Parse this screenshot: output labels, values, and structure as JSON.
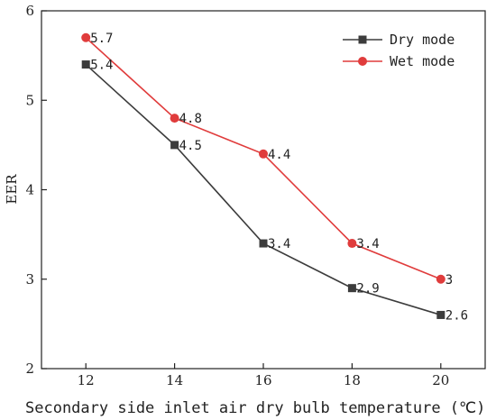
{
  "chart_data": {
    "type": "line",
    "title": "",
    "xlabel": "Secondary side inlet air dry bulb temperature (℃)",
    "ylabel": "EER",
    "x": [
      12,
      14,
      16,
      18,
      20
    ],
    "xlim": [
      11,
      21
    ],
    "ylim": [
      2,
      6
    ],
    "xticks": [
      12,
      14,
      16,
      18,
      20
    ],
    "yticks": [
      2,
      3,
      4,
      5,
      6
    ],
    "grid": false,
    "legend_position": "top-right",
    "series": [
      {
        "name": "Dry mode",
        "values": [
          5.4,
          4.5,
          3.4,
          2.9,
          2.6
        ],
        "labels": [
          "5.4",
          "4.5",
          "3.4",
          "2.9",
          "2.6"
        ],
        "color": "#3c3c3c",
        "marker": "square"
      },
      {
        "name": "Wet mode",
        "values": [
          5.7,
          4.8,
          4.4,
          3.4,
          3.0
        ],
        "labels": [
          "5.7",
          "4.8",
          "4.4",
          "3.4",
          "3"
        ],
        "color": "#e03c3c",
        "marker": "circle"
      }
    ]
  }
}
